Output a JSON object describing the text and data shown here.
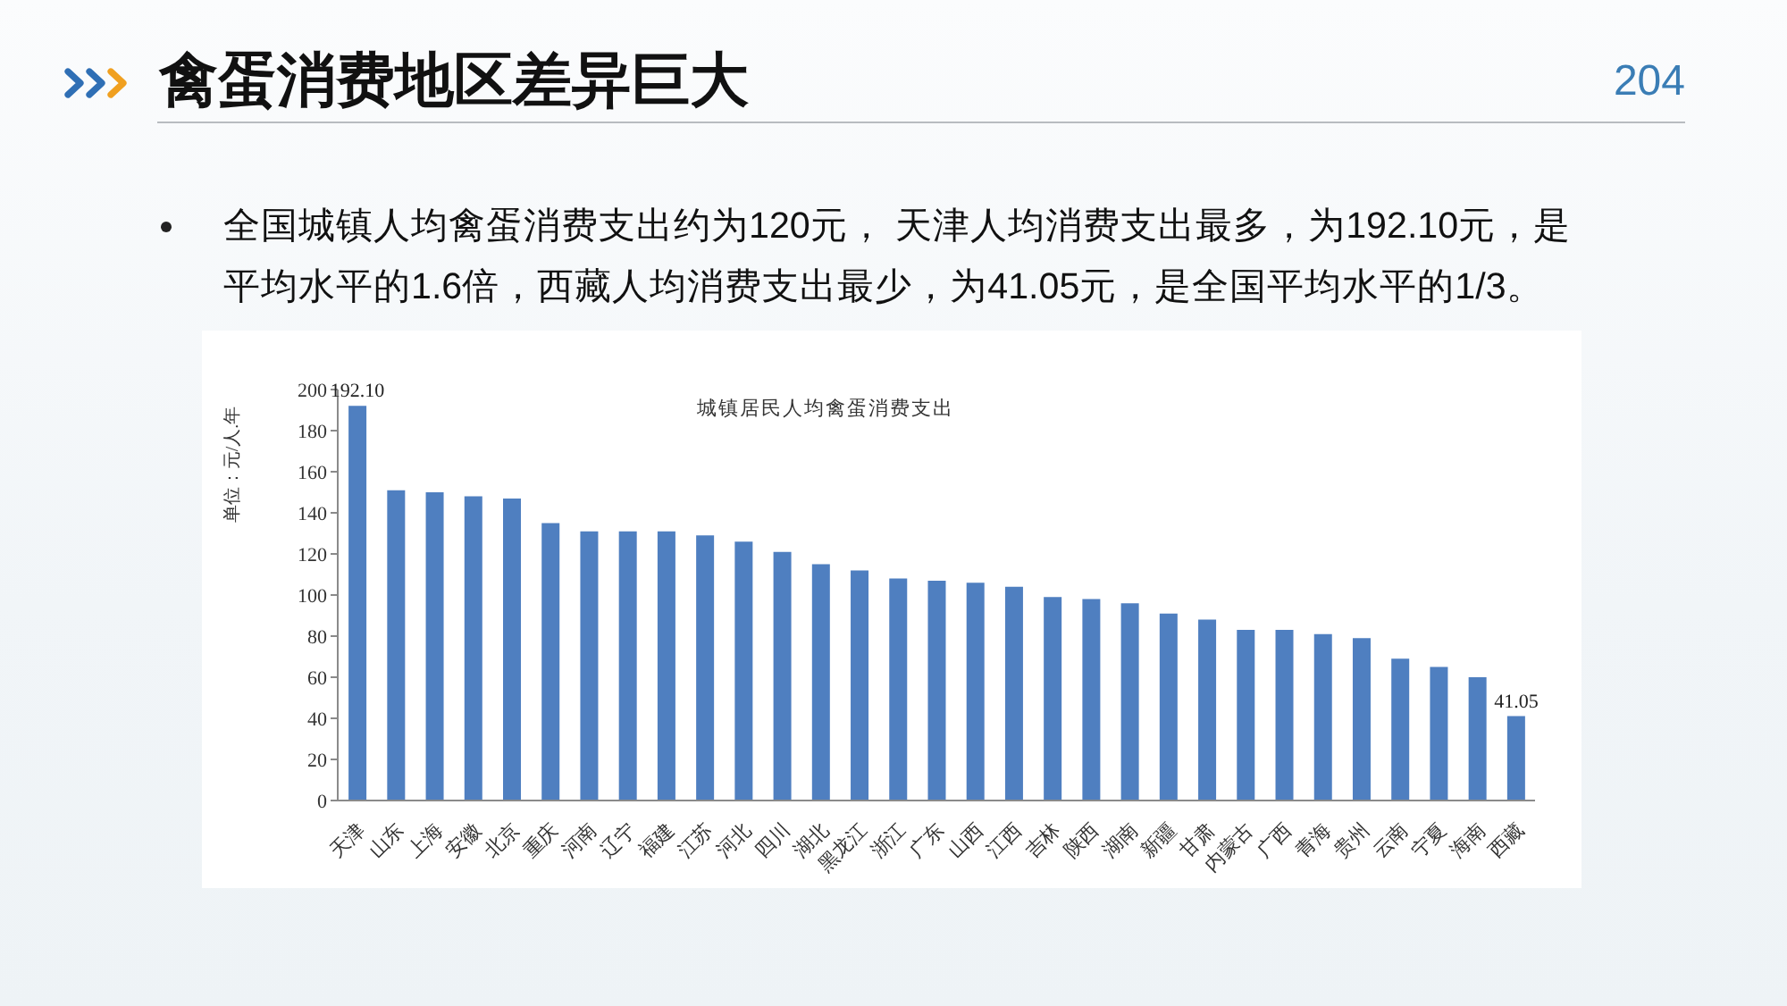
{
  "chart_data": {
    "type": "bar",
    "title": "禽蛋消费地区差异巨大",
    "subtitle": "城镇居民人均禽蛋消费支出",
    "ylabel": "单位：元/人.年",
    "annotations": [
      "204",
      "全国城镇人均禽蛋消费支出约为120元， 天津人均消费支出最多，为192.10元，是平均水平的1.6倍，西藏人均消费支出最少，为41.05元，是全国平均水平的1/3。"
    ],
    "categories": [
      "天津",
      "山东",
      "上海",
      "安徽",
      "北京",
      "重庆",
      "河南",
      "辽宁",
      "福建",
      "江苏",
      "河北",
      "四川",
      "湖北",
      "黑龙江",
      "浙江",
      "广东",
      "山西",
      "江西",
      "吉林",
      "陕西",
      "湖南",
      "新疆",
      "甘肃",
      "内蒙古",
      "广西",
      "青海",
      "贵州",
      "云南",
      "宁夏",
      "海南",
      "西藏"
    ],
    "values": [
      192.1,
      151,
      150,
      148,
      147,
      135,
      131,
      131,
      131,
      129,
      126,
      121,
      115,
      112,
      108,
      107,
      106,
      104,
      99,
      98,
      96,
      91,
      88,
      83,
      83,
      81,
      79,
      69,
      65,
      60,
      41.05
    ],
    "value_labels": [
      "192.10",
      null,
      null,
      null,
      null,
      null,
      null,
      null,
      null,
      null,
      null,
      null,
      null,
      null,
      null,
      null,
      null,
      null,
      null,
      null,
      null,
      null,
      null,
      null,
      null,
      null,
      null,
      null,
      null,
      null,
      "41.05"
    ],
    "color": "#4f7fc0",
    "ylim": [
      0,
      200
    ],
    "yticks": [
      0,
      20,
      40,
      60,
      80,
      100,
      120,
      140,
      160,
      180,
      200
    ]
  }
}
